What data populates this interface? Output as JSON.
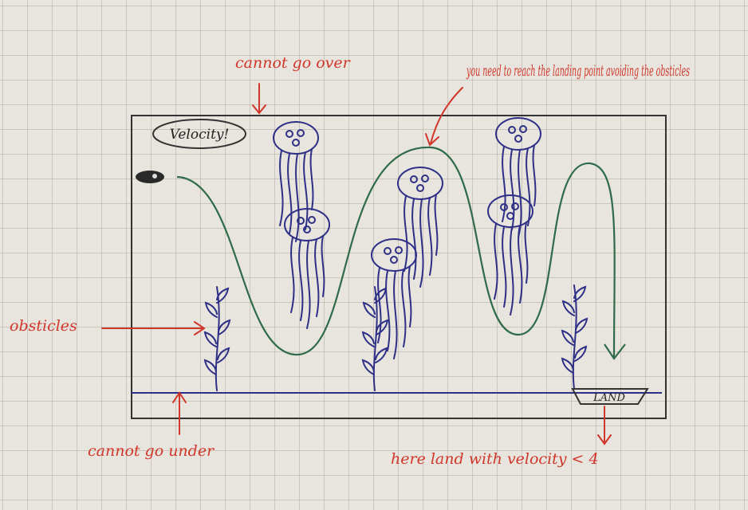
{
  "annotations": {
    "over": "cannot go over",
    "goal": "you need to reach the landing point avoiding the obsticles",
    "velocity": "Velocity!",
    "obstacles": "obsticles",
    "under": "cannot go under",
    "land": "LAND",
    "landing_rule": "here land with velocity < 4"
  }
}
